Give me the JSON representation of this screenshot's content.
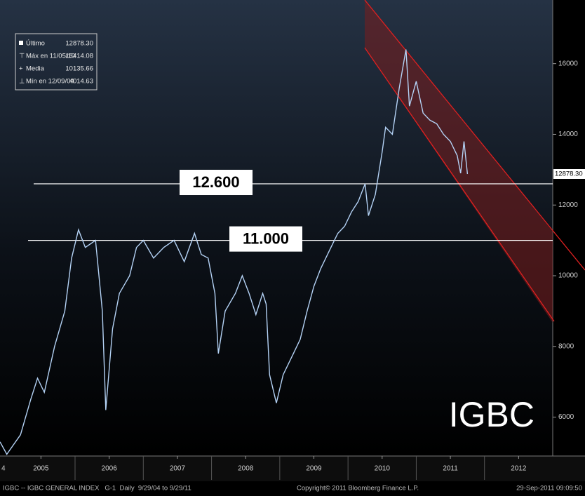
{
  "chart_data": {
    "type": "line",
    "annotation": "IGBC",
    "x": [
      2004.9,
      2005.0,
      2005.2,
      2005.35,
      2005.45,
      2005.55,
      2005.7,
      2005.85,
      2005.95,
      2006.05,
      2006.15,
      2006.3,
      2006.4,
      2006.45,
      2006.55,
      2006.65,
      2006.8,
      2006.9,
      2007.0,
      2007.15,
      2007.3,
      2007.45,
      2007.6,
      2007.75,
      2007.85,
      2007.95,
      2008.05,
      2008.1,
      2008.2,
      2008.35,
      2008.45,
      2008.55,
      2008.65,
      2008.75,
      2008.8,
      2008.85,
      2008.95,
      2009.05,
      2009.2,
      2009.3,
      2009.4,
      2009.5,
      2009.6,
      2009.75,
      2009.85,
      2009.95,
      2010.05,
      2010.15,
      2010.25,
      2010.3,
      2010.4,
      2010.5,
      2010.55,
      2010.65,
      2010.75,
      2010.85,
      2010.9,
      2011.0,
      2011.1,
      2011.2,
      2011.3,
      2011.4,
      2011.5,
      2011.6,
      2011.65,
      2011.7,
      2011.75
    ],
    "series": [
      {
        "name": "IGBC",
        "color": "#b4d2f5",
        "values": [
          5300,
          4950,
          5500,
          6500,
          7100,
          6700,
          8000,
          9000,
          10500,
          11300,
          10800,
          11000,
          9000,
          6200,
          8500,
          9500,
          10000,
          10800,
          11000,
          10500,
          10800,
          11000,
          10400,
          11200,
          10600,
          10500,
          9500,
          7800,
          9000,
          9500,
          10000,
          9500,
          8900,
          9500,
          9200,
          7200,
          6400,
          7200,
          7800,
          8200,
          9000,
          9700,
          10200,
          10800,
          11200,
          11400,
          11800,
          12100,
          12600,
          11700,
          12300,
          13500,
          14200,
          14000,
          15300,
          16400,
          14800,
          15500,
          14600,
          14400,
          14300,
          14000,
          13800,
          13400,
          12900,
          13800,
          12878.3
        ]
      }
    ],
    "xlim": [
      2004.9,
      2013.0
    ],
    "xticks": [
      {
        "value": 2005.5,
        "label": "2005"
      },
      {
        "value": 2006.5,
        "label": "2006"
      },
      {
        "value": 2007.5,
        "label": "2007"
      },
      {
        "value": 2008.5,
        "label": "2008"
      },
      {
        "value": 2009.5,
        "label": "2009"
      },
      {
        "value": 2010.5,
        "label": "2010"
      },
      {
        "value": 2011.5,
        "label": "2011"
      },
      {
        "value": 2012.5,
        "label": "2012"
      }
    ],
    "x_edge_label": "4",
    "ylim": [
      4900,
      17800
    ],
    "yticks": [
      6000,
      8000,
      10000,
      12000,
      14000,
      16000
    ],
    "last_price": {
      "value": 12878.3,
      "label": "12878.30"
    },
    "levels": [
      {
        "value": 12600,
        "label": "12.600"
      },
      {
        "value": 11000,
        "label": "11.000"
      }
    ],
    "legend": [
      {
        "name": "Último",
        "value": "12878.30"
      },
      {
        "name": "Máx en 11/05/10",
        "value": "16414.08"
      },
      {
        "name": "Media",
        "value": "10135.66"
      },
      {
        "name": "Mín en 12/09/04",
        "value": "4014.63"
      }
    ],
    "footer": {
      "left": "IGBC -- IGBC GENERAL INDEX   G-1  Daily  9/29/04 to 9/29/11",
      "center": "Copyright© 2011 Bloomberg Finance L.P.",
      "right": "29-Sep-2011 09:09:50"
    }
  }
}
